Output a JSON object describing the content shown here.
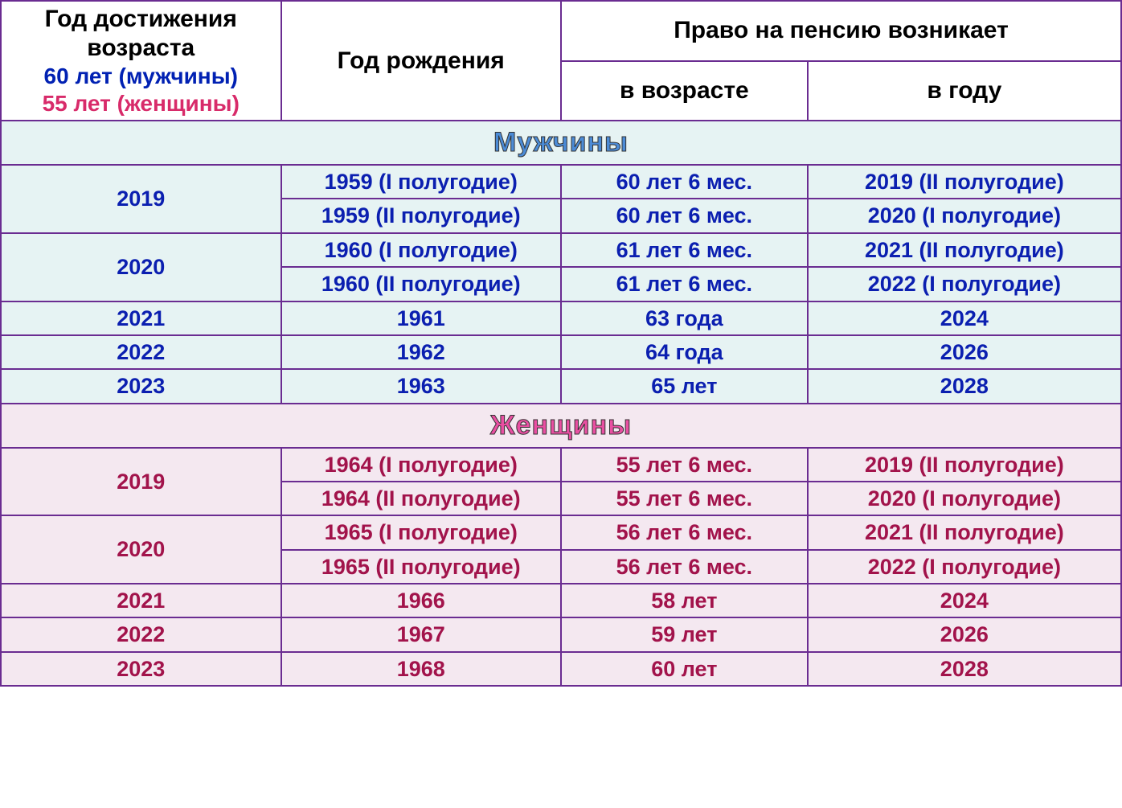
{
  "colors": {
    "border": "#6a2c91",
    "male_text": "#0b1fb0",
    "female_text": "#a2134b",
    "male_bg": "#e6f3f3",
    "female_bg": "#f4e8f0",
    "header_black": "#000000",
    "header_male": "#0121b3",
    "header_female": "#d82b6a",
    "section_male_text": "#4b8bd6",
    "section_female_text": "#e94fa2"
  },
  "fonts": {
    "header_size_pt": 22,
    "section_size_pt": 25,
    "cell_size_pt": 20,
    "family": "Arial"
  },
  "header": {
    "col1_line1": "Год достижения возраста",
    "col1_line2": "60 лет (мужчины)",
    "col1_line3": "55 лет (женщины)",
    "col2": "Год рождения",
    "col34_top": "Право на пенсию возникает",
    "col3": "в возрасте",
    "col4": "в году"
  },
  "sections": {
    "male": "Мужчины",
    "female": "Женщины"
  },
  "male_rows": [
    {
      "reach_year": "2019",
      "span": 2,
      "birth": "1959 (I полугодие)",
      "age": "60 лет 6 мес.",
      "right_year": "2019 (II полугодие)"
    },
    {
      "reach_year": "",
      "birth": "1959  (II полугодие)",
      "age": "60 лет 6 мес.",
      "right_year": "2020 (I полугодие)"
    },
    {
      "reach_year": "2020",
      "span": 2,
      "birth": "1960 (I полугодие)",
      "age": "61 лет 6 мес.",
      "right_year": "2021 (II полугодие)"
    },
    {
      "reach_year": "",
      "birth": "1960 (II полугодие)",
      "age": "61 лет 6 мес.",
      "right_year": "2022 (I полугодие)"
    },
    {
      "reach_year": "2021",
      "span": 1,
      "birth": "1961",
      "age": "63 года",
      "right_year": "2024"
    },
    {
      "reach_year": "2022",
      "span": 1,
      "birth": "1962",
      "age": "64 года",
      "right_year": "2026"
    },
    {
      "reach_year": "2023",
      "span": 1,
      "birth": "1963",
      "age": "65 лет",
      "right_year": "2028"
    }
  ],
  "female_rows": [
    {
      "reach_year": "2019",
      "span": 2,
      "birth": "1964 (I полугодие)",
      "age": "55 лет 6 мес.",
      "right_year": "2019 (II полугодие)"
    },
    {
      "reach_year": "",
      "birth": "1964  (II полугодие)",
      "age": "55 лет 6 мес.",
      "right_year": "2020 (I полугодие)"
    },
    {
      "reach_year": "2020",
      "span": 2,
      "birth": "1965 (I полугодие)",
      "age": "56 лет 6 мес.",
      "right_year": "2021 (II полугодие)"
    },
    {
      "reach_year": "",
      "birth": "1965 (II полугодие)",
      "age": "56 лет 6 мес.",
      "right_year": "2022 (I полугодие)"
    },
    {
      "reach_year": "2021",
      "span": 1,
      "birth": "1966",
      "age": "58 лет",
      "right_year": "2024"
    },
    {
      "reach_year": "2022",
      "span": 1,
      "birth": "1967",
      "age": "59 лет",
      "right_year": "2026"
    },
    {
      "reach_year": "2023",
      "span": 1,
      "birth": "1968",
      "age": "60 лет",
      "right_year": "2028"
    }
  ]
}
